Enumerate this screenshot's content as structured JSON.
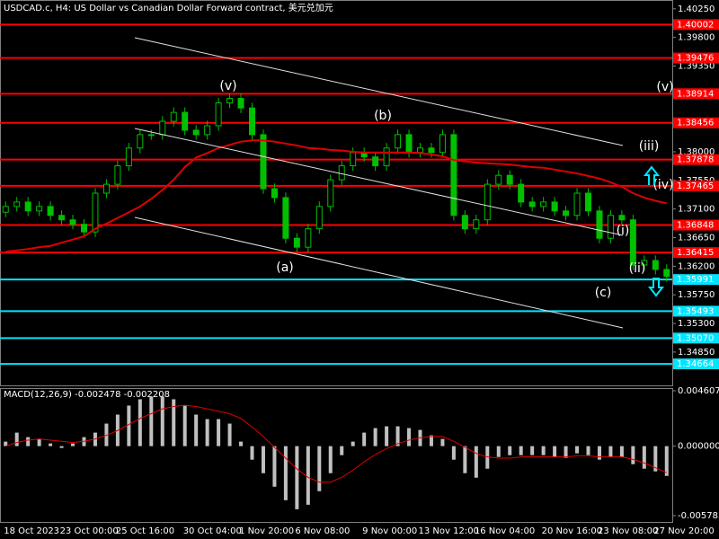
{
  "chart_data": [
    {
      "type": "candlestick",
      "title": "USDCAD.c, H4:  US Dollar vs Canadian Dollar Forward contract, 美元兑加元",
      "categories": [
        "18 Oct 2023",
        null,
        null,
        null,
        null,
        "23 Oct 00:00",
        null,
        null,
        null,
        null,
        "25 Oct 16:00",
        null,
        null,
        null,
        null,
        null,
        "30 Oct 04:00",
        null,
        null,
        null,
        null,
        "1 Nov 20:00",
        null,
        null,
        null,
        null,
        "6 Nov 08:00",
        null,
        null,
        null,
        null,
        null,
        "9 Nov 00:00",
        null,
        null,
        null,
        null,
        "13 Nov 12:00",
        null,
        null,
        null,
        null,
        "16 Nov 04:00",
        null,
        null,
        null,
        null,
        null,
        "20 Nov 16:00",
        null,
        null,
        null,
        null,
        "23 Nov 08:00",
        null,
        null,
        null,
        null,
        "27 Nov 20:00",
        null
      ],
      "open": [
        1.3705,
        1.3714,
        1.3721,
        1.3707,
        1.3714,
        1.37,
        1.3693,
        1.3686,
        1.3674,
        1.3735,
        1.3749,
        1.3778,
        1.3806,
        1.3827,
        1.3827,
        1.3848,
        1.3862,
        1.3834,
        1.3827,
        1.3841,
        1.3877,
        1.3884,
        1.3869,
        1.3827,
        1.3742,
        1.3728,
        1.3664,
        1.365,
        1.3679,
        1.3714,
        1.3756,
        1.3778,
        1.3799,
        1.3792,
        1.3778,
        1.3806,
        1.3827,
        1.3799,
        1.3806,
        1.3799,
        1.3827,
        1.37,
        1.3679,
        1.3693,
        1.3749,
        1.3763,
        1.3749,
        1.3721,
        1.3714,
        1.3721,
        1.3707,
        1.37,
        1.3735,
        1.3707,
        1.3664,
        1.37,
        1.3693,
        1.3622,
        1.3629,
        1.3615
      ],
      "high": [
        1.3722,
        1.3729,
        1.3729,
        1.3722,
        1.3722,
        1.3708,
        1.3701,
        1.3694,
        1.3743,
        1.3757,
        1.3786,
        1.3814,
        1.3835,
        1.3835,
        1.3856,
        1.387,
        1.387,
        1.3842,
        1.3849,
        1.3885,
        1.3892,
        1.3892,
        1.3877,
        1.3835,
        1.375,
        1.3736,
        1.3672,
        1.3687,
        1.3722,
        1.3764,
        1.3786,
        1.3807,
        1.3807,
        1.38,
        1.3814,
        1.3835,
        1.3835,
        1.3814,
        1.3814,
        1.3835,
        1.3835,
        1.3708,
        1.3701,
        1.3757,
        1.3771,
        1.3771,
        1.3757,
        1.3729,
        1.3729,
        1.3729,
        1.3715,
        1.3743,
        1.3743,
        1.3715,
        1.3708,
        1.3708,
        1.3701,
        1.3637,
        1.3637,
        1.3623
      ],
      "low": [
        1.3697,
        1.3706,
        1.3699,
        1.3699,
        1.3692,
        1.3685,
        1.3678,
        1.3666,
        1.3666,
        1.3727,
        1.3741,
        1.377,
        1.3798,
        1.3819,
        1.3819,
        1.384,
        1.3826,
        1.3819,
        1.3819,
        1.3833,
        1.3869,
        1.3861,
        1.3819,
        1.3734,
        1.372,
        1.3656,
        1.3642,
        1.3642,
        1.3671,
        1.3706,
        1.3748,
        1.377,
        1.3784,
        1.377,
        1.377,
        1.3798,
        1.3791,
        1.3791,
        1.3791,
        1.3791,
        1.3692,
        1.3671,
        1.3671,
        1.3685,
        1.3741,
        1.3741,
        1.3713,
        1.3706,
        1.3706,
        1.3699,
        1.3692,
        1.3692,
        1.3699,
        1.3656,
        1.3656,
        1.3685,
        1.3614,
        1.3614,
        1.3607,
        1.3596
      ],
      "close": [
        1.3714,
        1.3721,
        1.3707,
        1.3714,
        1.37,
        1.3693,
        1.3686,
        1.3674,
        1.3735,
        1.3749,
        1.3778,
        1.3806,
        1.3827,
        1.3827,
        1.3848,
        1.3862,
        1.3834,
        1.3827,
        1.3841,
        1.3877,
        1.3884,
        1.3869,
        1.3827,
        1.3742,
        1.3728,
        1.3664,
        1.365,
        1.3679,
        1.3714,
        1.3756,
        1.3778,
        1.3799,
        1.3792,
        1.3778,
        1.3806,
        1.3827,
        1.3799,
        1.3806,
        1.3799,
        1.3827,
        1.37,
        1.3679,
        1.3693,
        1.3749,
        1.3763,
        1.3749,
        1.3721,
        1.3714,
        1.3721,
        1.3707,
        1.37,
        1.3735,
        1.3707,
        1.3664,
        1.37,
        1.3693,
        1.3622,
        1.3629,
        1.3615,
        1.3604
      ],
      "candle_color": "#00c000",
      "moving_average": {
        "color": "#e00000",
        "values": [
          1.3643,
          1.3645,
          1.3647,
          1.365,
          1.3652,
          1.3657,
          1.3662,
          1.3667,
          1.3679,
          1.3687,
          1.3696,
          1.3705,
          1.3714,
          1.3726,
          1.374,
          1.3756,
          1.3776,
          1.3791,
          1.3798,
          1.3806,
          1.3811,
          1.3816,
          1.3818,
          1.3818,
          1.3816,
          1.3813,
          1.381,
          1.3806,
          1.3805,
          1.3803,
          1.3802,
          1.38,
          1.3799,
          1.3799,
          1.3799,
          1.3799,
          1.3799,
          1.3798,
          1.3796,
          1.3793,
          1.3787,
          1.3785,
          1.3783,
          1.3782,
          1.3781,
          1.378,
          1.3778,
          1.3776,
          1.3775,
          1.3772,
          1.3769,
          1.3766,
          1.3762,
          1.3758,
          1.3752,
          1.3745,
          1.3735,
          1.3728,
          1.3723,
          1.3719
        ]
      },
      "ylim": [
        1.3434,
        1.4036
      ],
      "yticks": [
        {
          "value": 1.4025,
          "label": "1.40250"
        },
        {
          "value": 1.398,
          "label": "1.39800"
        },
        {
          "value": 1.3935,
          "label": "1.39350"
        },
        {
          "value": 1.389,
          "label": "1.38900"
        },
        {
          "value": 1.3845,
          "label": "1.38450"
        },
        {
          "value": 1.38,
          "label": "1.38000"
        },
        {
          "value": 1.3755,
          "label": "1.37550"
        },
        {
          "value": 1.371,
          "label": "1.37100"
        },
        {
          "value": 1.3665,
          "label": "1.36650"
        },
        {
          "value": 1.362,
          "label": "1.36200"
        },
        {
          "value": 1.3575,
          "label": "1.35750"
        },
        {
          "value": 1.353,
          "label": "1.35300"
        },
        {
          "value": 1.3485,
          "label": "1.34850"
        }
      ],
      "levels": [
        {
          "price": 1.40002,
          "color": "#ff0000"
        },
        {
          "price": 1.39476,
          "color": "#ff0000"
        },
        {
          "price": 1.38914,
          "color": "#ff0000"
        },
        {
          "price": 1.38456,
          "color": "#ff0000"
        },
        {
          "price": 1.37878,
          "color": "#ff0000"
        },
        {
          "price": 1.37465,
          "color": "#ff0000"
        },
        {
          "price": 1.36848,
          "color": "#ff0000"
        },
        {
          "price": 1.36415,
          "color": "#ff0000"
        },
        {
          "price": 1.35991,
          "color": "#00e5ff"
        },
        {
          "price": 1.35493,
          "color": "#00e5ff"
        },
        {
          "price": {
            "value": 1.3507,
            "label": "1.35070"
          },
          "color": "#00e5ff"
        },
        {
          "price": 1.34664,
          "color": "#00e5ff"
        }
      ],
      "wave_labels": [
        {
          "text": "(v)",
          "color": "#ffffff"
        },
        {
          "text": "(b)",
          "color": "#f0c020"
        },
        {
          "text": "(a)",
          "color": "#f0c020"
        },
        {
          "text": "(c)",
          "color": "#f0c020"
        },
        {
          "text": "(iii)",
          "color": "#ffffff"
        },
        {
          "text": "(iv)",
          "color": "#ffffff"
        },
        {
          "text": "(i)",
          "color": "#ffffff"
        },
        {
          "text": "(ii)",
          "color": "#ffffff"
        },
        {
          "text": "(v)",
          "color": "#ffffff"
        }
      ]
    },
    {
      "type": "macd",
      "title": "MACD(12,26,9) -0.002478 -0.002208",
      "series": [
        {
          "name": "MACD",
          "color": "#c0c0c0",
          "values": [
            0.000375,
            0.001125,
            0.00075,
            0.0006,
            0.000225,
            -0.00015,
            0.000225,
            0.00075,
            0.001125,
            0.001875,
            0.002625,
            0.003375,
            0.0039,
            0.004125,
            0.004125,
            0.0039,
            0.003375,
            0.002625,
            0.00225,
            0.00225,
            0.001875,
            0.000375,
            -0.001125,
            -0.00225,
            -0.003375,
            -0.0045,
            -0.00525,
            -0.004875,
            -0.00375,
            -0.00225,
            -0.00075,
            0.000375,
            0.001125,
            0.0015,
            0.00165,
            0.00165,
            0.0015,
            0.00135,
            0.0009,
            0.0006,
            -0.001125,
            -0.00225,
            -0.002625,
            -0.001875,
            -0.0009,
            -0.00075,
            -0.00075,
            -0.00075,
            -0.00075,
            -0.0009,
            -0.000975,
            -0.0006,
            -0.00075,
            -0.001125,
            -0.0009,
            -0.0009,
            -0.0015,
            -0.001875,
            -0.0021,
            -0.002478
          ]
        },
        {
          "name": "Signal",
          "color": "#e00000",
          "values": [
            0.0,
            0.0003,
            0.0005,
            0.0006,
            0.0005,
            0.0004,
            0.0003,
            0.0004,
            0.0006,
            0.0009,
            0.0013,
            0.0018,
            0.0023,
            0.0027,
            0.0031,
            0.0033,
            0.0034,
            0.0033,
            0.0031,
            0.0029,
            0.0027,
            0.0023,
            0.0016,
            0.0008,
            -0.0001,
            -0.001,
            -0.0019,
            -0.0026,
            -0.003,
            -0.003,
            -0.0026,
            -0.002,
            -0.0013,
            -0.0007,
            -0.0002,
            0.0002,
            0.0005,
            0.0007,
            0.0008,
            0.0008,
            0.0004,
            -0.0001,
            -0.0006,
            -0.0009,
            -0.001,
            -0.001,
            -0.0009,
            -0.0009,
            -0.0009,
            -0.0009,
            -0.0009,
            -0.0008,
            -0.0008,
            -0.0009,
            -0.0009,
            -0.0009,
            -0.0011,
            -0.0014,
            -0.0018,
            -0.002208
          ]
        }
      ],
      "ylim": [
        -0.005783,
        0.004607
      ],
      "yticks": [
        0.004607,
        {
          "value": 0,
          "label": "0.000000"
        },
        -0.005783
      ]
    }
  ]
}
